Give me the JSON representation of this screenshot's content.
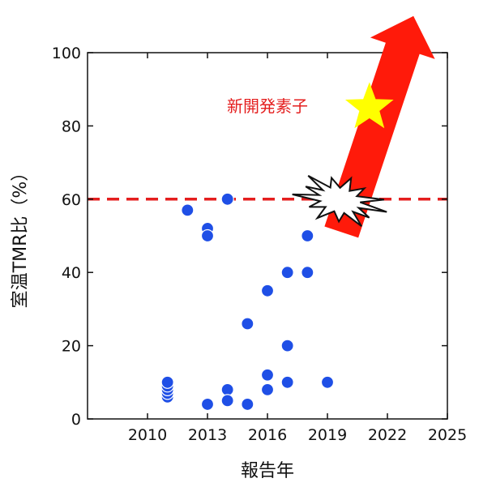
{
  "chart_data": {
    "type": "scatter",
    "xlabel": "報告年",
    "ylabel": "室温TMR比（%）",
    "xlim": [
      2007,
      2025
    ],
    "ylim": [
      0,
      100
    ],
    "xticks": [
      2010,
      2013,
      2016,
      2019,
      2022,
      2025
    ],
    "yticks": [
      0,
      20,
      40,
      60,
      80,
      100
    ],
    "grid": false,
    "series": [
      {
        "values": [
          {
            "x": 2011,
            "y": 6
          },
          {
            "x": 2011,
            "y": 7
          },
          {
            "x": 2011,
            "y": 8
          },
          {
            "x": 2011,
            "y": 9
          },
          {
            "x": 2011,
            "y": 10
          },
          {
            "x": 2012,
            "y": 57
          },
          {
            "x": 2013,
            "y": 52
          },
          {
            "x": 2013,
            "y": 50
          },
          {
            "x": 2013,
            "y": 4
          },
          {
            "x": 2014,
            "y": 60
          },
          {
            "x": 2014,
            "y": 8
          },
          {
            "x": 2014,
            "y": 5
          },
          {
            "x": 2015,
            "y": 26
          },
          {
            "x": 2015,
            "y": 4
          },
          {
            "x": 2016,
            "y": 35
          },
          {
            "x": 2016,
            "y": 12
          },
          {
            "x": 2016,
            "y": 8
          },
          {
            "x": 2017,
            "y": 40
          },
          {
            "x": 2017,
            "y": 20
          },
          {
            "x": 2017,
            "y": 10
          },
          {
            "x": 2018,
            "y": 50
          },
          {
            "x": 2018,
            "y": 40
          },
          {
            "x": 2019,
            "y": 10
          }
        ]
      }
    ],
    "reference_line": {
      "y": 60,
      "style": "dashed"
    },
    "annotation": {
      "text": "新開発素子",
      "arrow_from": {
        "x": 2019.7,
        "y": 51
      },
      "arrow_to": {
        "x": 2023.3,
        "y": 110
      },
      "star": {
        "x": 2021.1,
        "y": 85
      }
    },
    "colors": {
      "points": "#1f4fe6",
      "reference_line": "#e41e1e",
      "arrow": "#ff1a0a",
      "annotation_text": "#e41e1e",
      "star": "#ffff00",
      "axis": "#111111"
    }
  }
}
